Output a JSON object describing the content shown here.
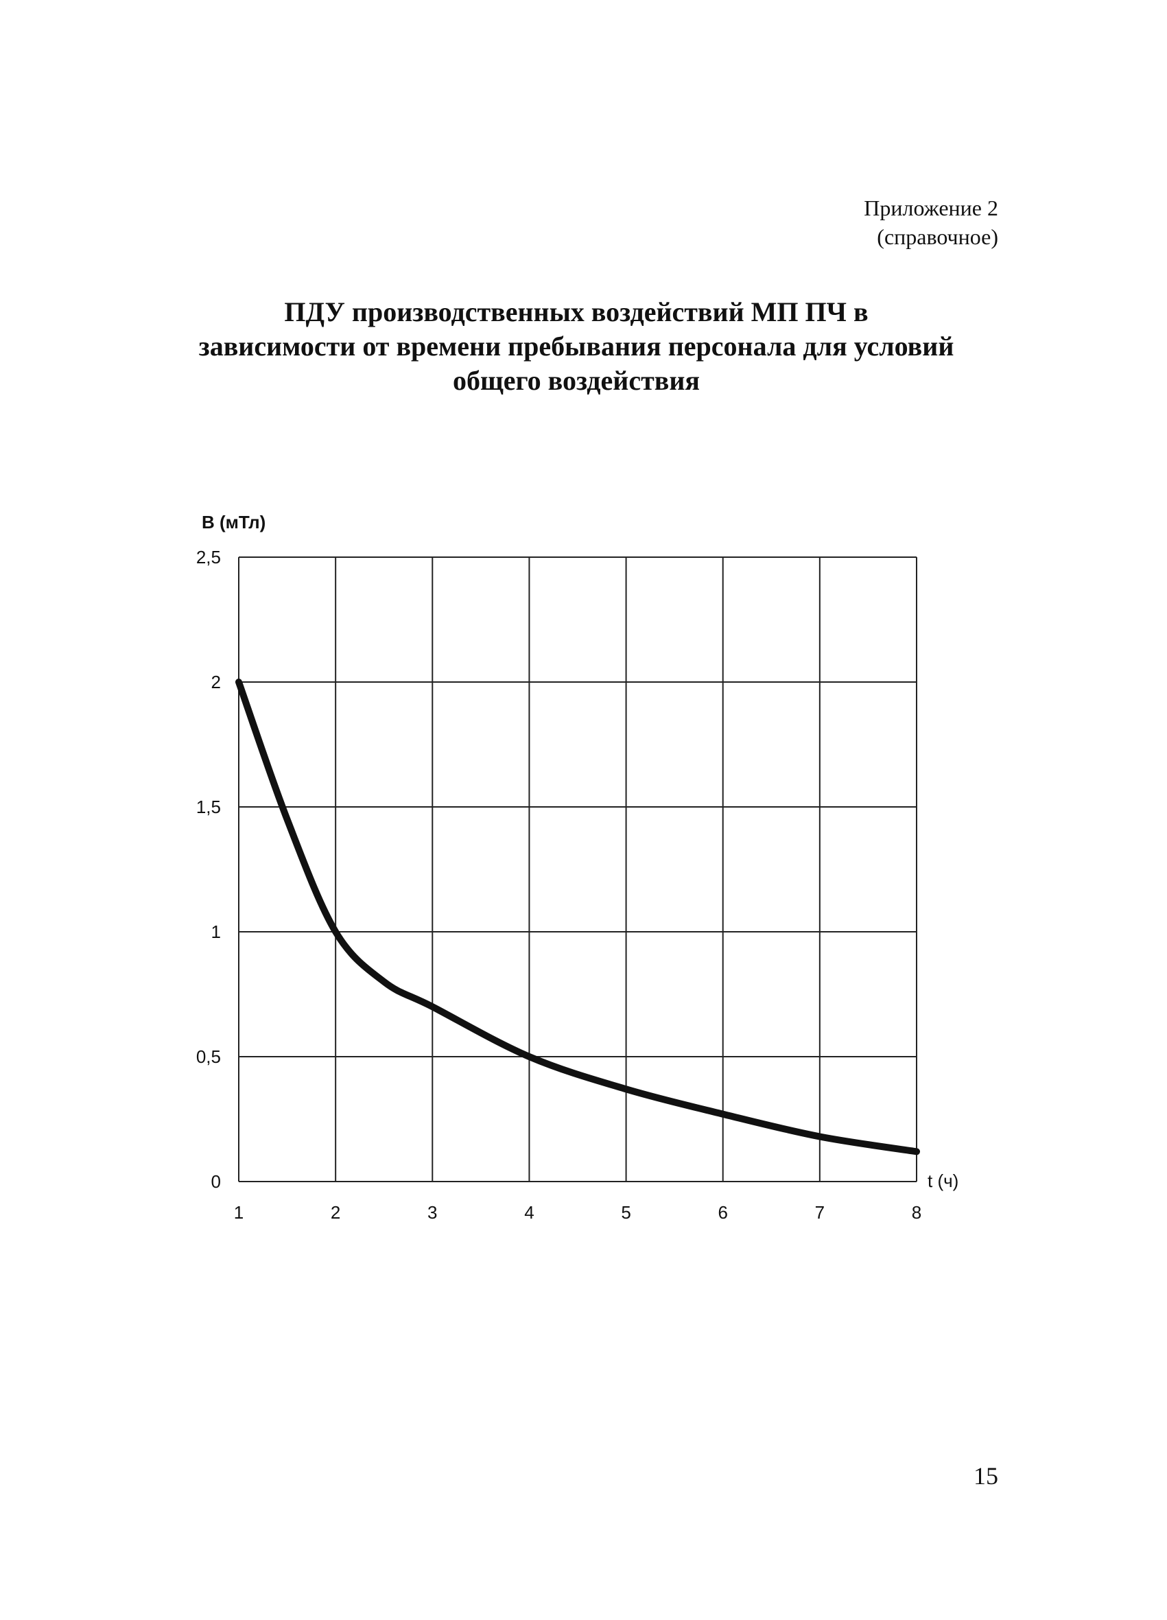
{
  "page": {
    "appendix_label": "Приложение 2",
    "appendix_note": "(справочное)",
    "title_lines": [
      "ПДУ производственных воздействий МП ПЧ в",
      "зависимости от времени пребывания персонала для условий",
      "общего воздействия"
    ],
    "page_number": "15"
  },
  "chart_data": {
    "type": "line",
    "title": "",
    "xlabel": "t (ч)",
    "ylabel": "B (мТл)",
    "xlim": [
      1,
      8
    ],
    "ylim": [
      0,
      2.5
    ],
    "x_ticks": [
      "1",
      "2",
      "3",
      "4",
      "5",
      "6",
      "7",
      "8"
    ],
    "y_ticks": [
      "0",
      "0,5",
      "1",
      "1,5",
      "2",
      "2,5"
    ],
    "grid": true,
    "series": [
      {
        "x": [
          1,
          1.5,
          2,
          2.5,
          3,
          4,
          5,
          6,
          7,
          8
        ],
        "y": [
          2.0,
          1.45,
          1.0,
          0.8,
          0.7,
          0.5,
          0.37,
          0.27,
          0.18,
          0.12
        ],
        "color": "#111111"
      }
    ]
  }
}
